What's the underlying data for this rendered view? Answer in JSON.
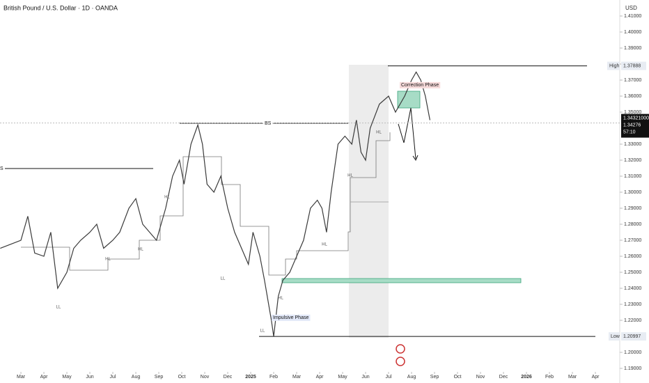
{
  "chart_data": {
    "type": "line",
    "title": "British Pound / U.S. Dollar · 1D · OANDA",
    "currency": "USD",
    "color": "#3a3a3a",
    "xlim": [
      -0.91,
      26.06
    ],
    "ylim": [
      1.1887,
      1.42
    ],
    "xticks": [
      {
        "value": 0,
        "label": "Mar"
      },
      {
        "value": 1,
        "label": "Apr"
      },
      {
        "value": 2,
        "label": "May"
      },
      {
        "value": 3,
        "label": "Jun"
      },
      {
        "value": 4,
        "label": "Jul"
      },
      {
        "value": 5,
        "label": "Aug"
      },
      {
        "value": 6,
        "label": "Sep"
      },
      {
        "value": 7,
        "label": "Oct"
      },
      {
        "value": 8,
        "label": "Nov"
      },
      {
        "value": 9,
        "label": "Dec"
      },
      {
        "value": 10,
        "label": "2025"
      },
      {
        "value": 11,
        "label": "Feb"
      },
      {
        "value": 12,
        "label": "Mar"
      },
      {
        "value": 13,
        "label": "Apr"
      },
      {
        "value": 14,
        "label": "May"
      },
      {
        "value": 15,
        "label": "Jun"
      },
      {
        "value": 16,
        "label": "Jul"
      },
      {
        "value": 17,
        "label": "Aug"
      },
      {
        "value": 18,
        "label": "Sep"
      },
      {
        "value": 19,
        "label": "Oct"
      },
      {
        "value": 20,
        "label": "Nov"
      },
      {
        "value": 21,
        "label": "Dec"
      },
      {
        "value": 22,
        "label": "2026"
      },
      {
        "value": 23,
        "label": "Feb"
      },
      {
        "value": 24,
        "label": "Mar"
      },
      {
        "value": 25,
        "label": "Apr"
      }
    ],
    "yticks": [
      {
        "value": 1.41,
        "label": "1.41000"
      },
      {
        "value": 1.4,
        "label": "1.40000"
      },
      {
        "value": 1.39,
        "label": "1.39000"
      },
      {
        "value": 1.38,
        "label": "1.38000"
      },
      {
        "value": 1.37,
        "label": "1.37000"
      },
      {
        "value": 1.36,
        "label": "1.36000"
      },
      {
        "value": 1.35,
        "label": "1.35000"
      },
      {
        "value": 1.33,
        "label": "1.33000"
      },
      {
        "value": 1.32,
        "label": "1.32000"
      },
      {
        "value": 1.31,
        "label": "1.31000"
      },
      {
        "value": 1.3,
        "label": "1.30000"
      },
      {
        "value": 1.29,
        "label": "1.29000"
      },
      {
        "value": 1.28,
        "label": "1.28000"
      },
      {
        "value": 1.27,
        "label": "1.27000"
      },
      {
        "value": 1.26,
        "label": "1.26000"
      },
      {
        "value": 1.25,
        "label": "1.25000"
      },
      {
        "value": 1.24,
        "label": "1.24000"
      },
      {
        "value": 1.23,
        "label": "1.23000"
      },
      {
        "value": 1.22,
        "label": "1.22000"
      },
      {
        "value": 1.2,
        "label": "1.20000"
      },
      {
        "value": 1.19,
        "label": "1.19000"
      }
    ],
    "x": [
      -0.9,
      0,
      0.3,
      0.6,
      1.0,
      1.3,
      1.6,
      2.0,
      2.3,
      2.6,
      3.0,
      3.3,
      3.6,
      4.0,
      4.3,
      4.7,
      5.0,
      5.3,
      5.6,
      5.9,
      6.3,
      6.6,
      6.9,
      7.1,
      7.4,
      7.7,
      7.9,
      8.1,
      8.4,
      8.7,
      9.0,
      9.3,
      9.6,
      9.9,
      10.1,
      10.4,
      10.6,
      10.9,
      11.0,
      11.2,
      11.4,
      11.7,
      12.0,
      12.3,
      12.6,
      12.9,
      13.1,
      13.3,
      13.5,
      13.8,
      14.1,
      14.4,
      14.6,
      14.8,
      15.0,
      15.2,
      15.6,
      16.0,
      16.3,
      16.7,
      17.0,
      17.2,
      17.4,
      17.6,
      17.8
    ],
    "values": [
      1.265,
      1.27,
      1.285,
      1.262,
      1.26,
      1.275,
      1.24,
      1.25,
      1.265,
      1.27,
      1.275,
      1.28,
      1.265,
      1.27,
      1.275,
      1.29,
      1.296,
      1.28,
      1.275,
      1.27,
      1.29,
      1.31,
      1.32,
      1.305,
      1.33,
      1.342,
      1.33,
      1.305,
      1.3,
      1.31,
      1.29,
      1.275,
      1.265,
      1.255,
      1.275,
      1.26,
      1.245,
      1.22,
      1.21,
      1.235,
      1.245,
      1.25,
      1.26,
      1.27,
      1.29,
      1.295,
      1.29,
      1.275,
      1.3,
      1.33,
      1.335,
      1.33,
      1.345,
      1.325,
      1.32,
      1.34,
      1.355,
      1.36,
      1.35,
      1.36,
      1.37,
      1.375,
      1.37,
      1.36,
      1.345
    ],
    "high_label": "High",
    "high": 1.37888,
    "low_label": "Low",
    "low": 1.20997,
    "last": {
      "value": 1.34321,
      "label": "1.34321000"
    },
    "bid": 1.34276,
    "countdown": "57:10",
    "annotations": [
      "Correction Phase",
      "Impulsive Phase",
      "BS",
      "S"
    ],
    "swing_labels": [
      "HL",
      "HL",
      "HL",
      "LL",
      "HL",
      "HL",
      "HL",
      "HL",
      "LL",
      "LL"
    ],
    "grid": false
  }
}
